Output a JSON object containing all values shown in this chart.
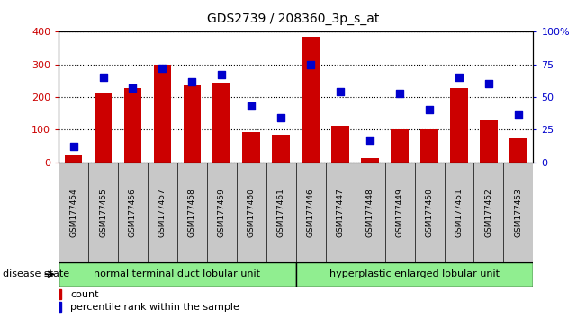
{
  "title": "GDS2739 / 208360_3p_s_at",
  "samples": [
    "GSM177454",
    "GSM177455",
    "GSM177456",
    "GSM177457",
    "GSM177458",
    "GSM177459",
    "GSM177460",
    "GSM177461",
    "GSM177446",
    "GSM177447",
    "GSM177448",
    "GSM177449",
    "GSM177450",
    "GSM177451",
    "GSM177452",
    "GSM177453"
  ],
  "counts": [
    20,
    213,
    228,
    300,
    237,
    245,
    93,
    83,
    385,
    112,
    12,
    100,
    100,
    228,
    128,
    72
  ],
  "percentiles": [
    12,
    65,
    57,
    72,
    62,
    67,
    43,
    34,
    75,
    54,
    17,
    53,
    40,
    65,
    60,
    36
  ],
  "group1_label": "normal terminal duct lobular unit",
  "group2_label": "hyperplastic enlarged lobular unit",
  "group1_count": 8,
  "group2_count": 8,
  "bar_color": "#cc0000",
  "dot_color": "#0000cc",
  "ylim_left": [
    0,
    400
  ],
  "ylim_right": [
    0,
    100
  ],
  "yticks_left": [
    0,
    100,
    200,
    300,
    400
  ],
  "yticks_right": [
    0,
    25,
    50,
    75,
    100
  ],
  "yticklabels_right": [
    "0",
    "25",
    "50",
    "75",
    "100%"
  ],
  "grid_color": "#000000",
  "bar_color_red": "#cc0000",
  "dot_color_blue": "#0000cc",
  "group_color": "#90ee90",
  "xtick_bg": "#c8c8c8",
  "legend_count_label": "count",
  "legend_pct_label": "percentile rank within the sample",
  "disease_state_label": "disease state"
}
